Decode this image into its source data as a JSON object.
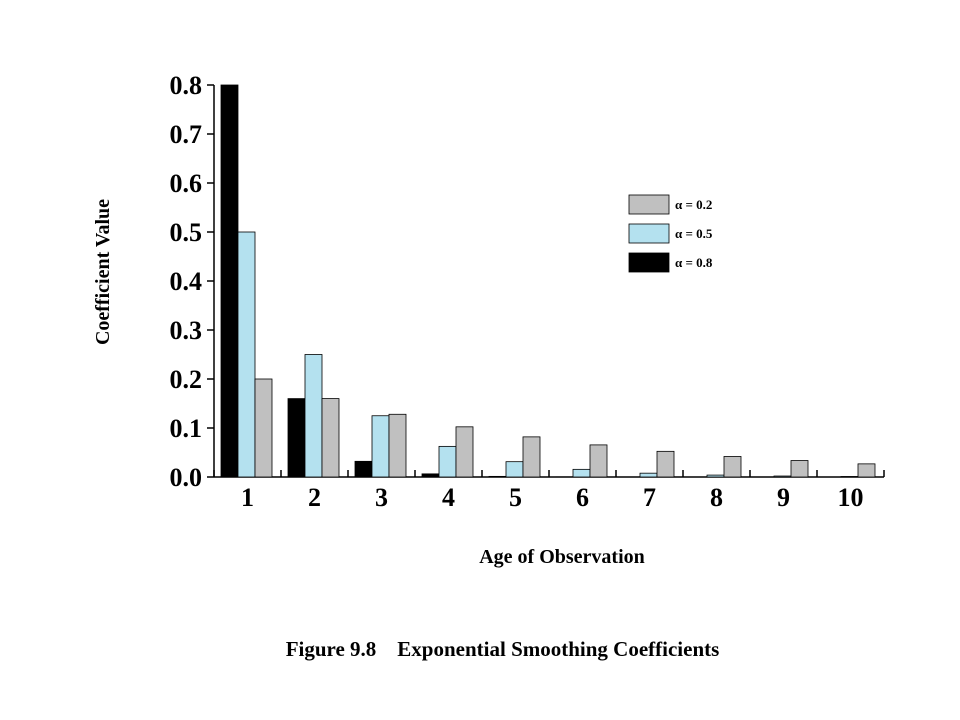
{
  "caption": {
    "figure_number": "Figure 9.8",
    "title": "Exponential Smoothing Coefficients"
  },
  "chart_data": {
    "type": "bar",
    "xlabel": "Age of Observation",
    "ylabel": "Coefficient Value",
    "categories": [
      "1",
      "2",
      "3",
      "4",
      "5",
      "6",
      "7",
      "8",
      "9",
      "10"
    ],
    "ylim": [
      0,
      0.8
    ],
    "yticks": [
      "0.0",
      "0.1",
      "0.2",
      "0.3",
      "0.4",
      "0.5",
      "0.6",
      "0.7",
      "0.8"
    ],
    "grid": false,
    "legend_position": "top-right",
    "series": [
      {
        "name": "α = 0.8",
        "color": "#000000",
        "values": [
          0.8,
          0.16,
          0.032,
          0.0064,
          0.00128,
          0.000256,
          5.12e-05,
          1e-05,
          2e-06,
          4e-07
        ]
      },
      {
        "name": "α = 0.5",
        "color": "#b4e1ef",
        "values": [
          0.5,
          0.25,
          0.125,
          0.0625,
          0.03125,
          0.015625,
          0.0078,
          0.0039,
          0.002,
          0.001
        ]
      },
      {
        "name": "α = 0.2",
        "color": "#c0c0c0",
        "values": [
          0.2,
          0.16,
          0.128,
          0.1024,
          0.0819,
          0.0655,
          0.0524,
          0.0419,
          0.0336,
          0.0268
        ]
      }
    ],
    "legend_order": [
      2,
      1,
      0
    ]
  }
}
